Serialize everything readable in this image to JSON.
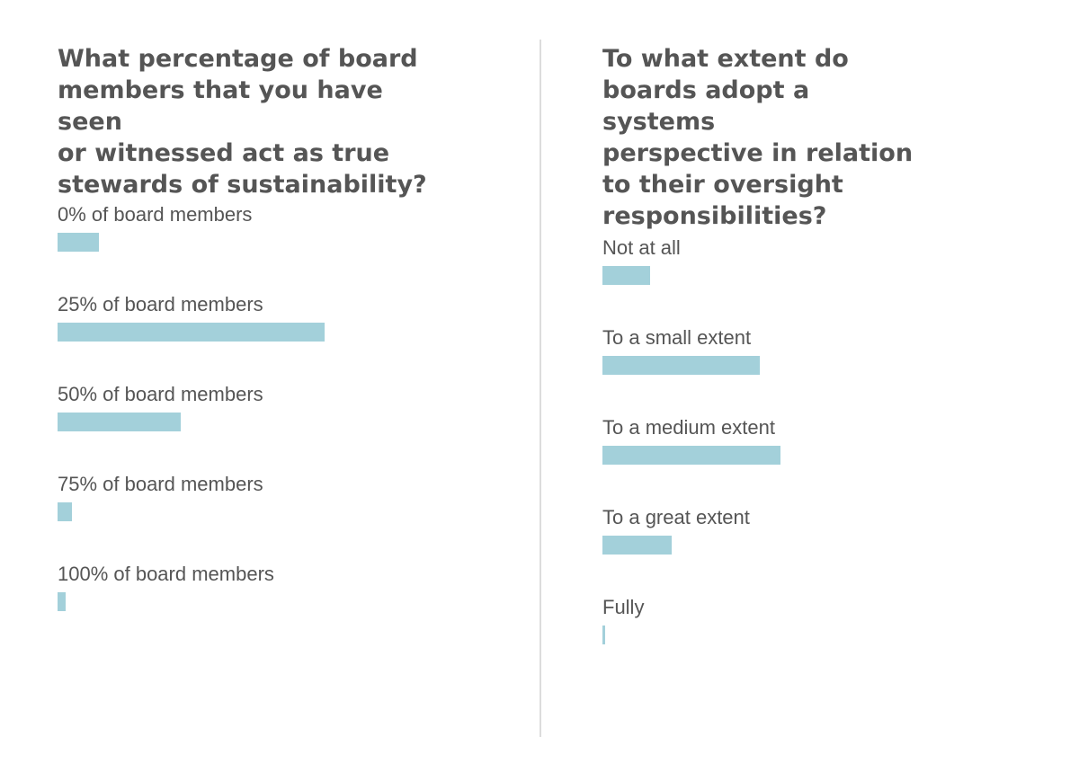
{
  "colors": {
    "bar": "#a3d0da",
    "text": "#555555",
    "divider": "#dcdcdc"
  },
  "chart_data": [
    {
      "type": "bar",
      "orientation": "horizontal",
      "title": "What percentage of board\nmembers that you have seen\nor witnessed act as true\nstewards of sustainability?",
      "xlabel": "",
      "ylabel": "",
      "grid": false,
      "xlim": [
        0,
        100
      ],
      "categories": [
        "0% of board members",
        "25% of board members",
        "50% of board members",
        "75% of board members",
        "100% of board members"
      ],
      "values": [
        15.5,
        100,
        46,
        5.5,
        3
      ]
    },
    {
      "type": "bar",
      "orientation": "horizontal",
      "title": "To what extent do\nboards adopt a systems\nperspective in relation\nto their oversight\nresponsibilities?",
      "xlabel": "",
      "ylabel": "",
      "grid": false,
      "xlim": [
        0,
        100
      ],
      "categories": [
        "Not at all",
        "To a small extent",
        "To a medium extent",
        "To a great extent",
        "Fully"
      ],
      "values": [
        18,
        59,
        66.5,
        26,
        1
      ]
    }
  ]
}
